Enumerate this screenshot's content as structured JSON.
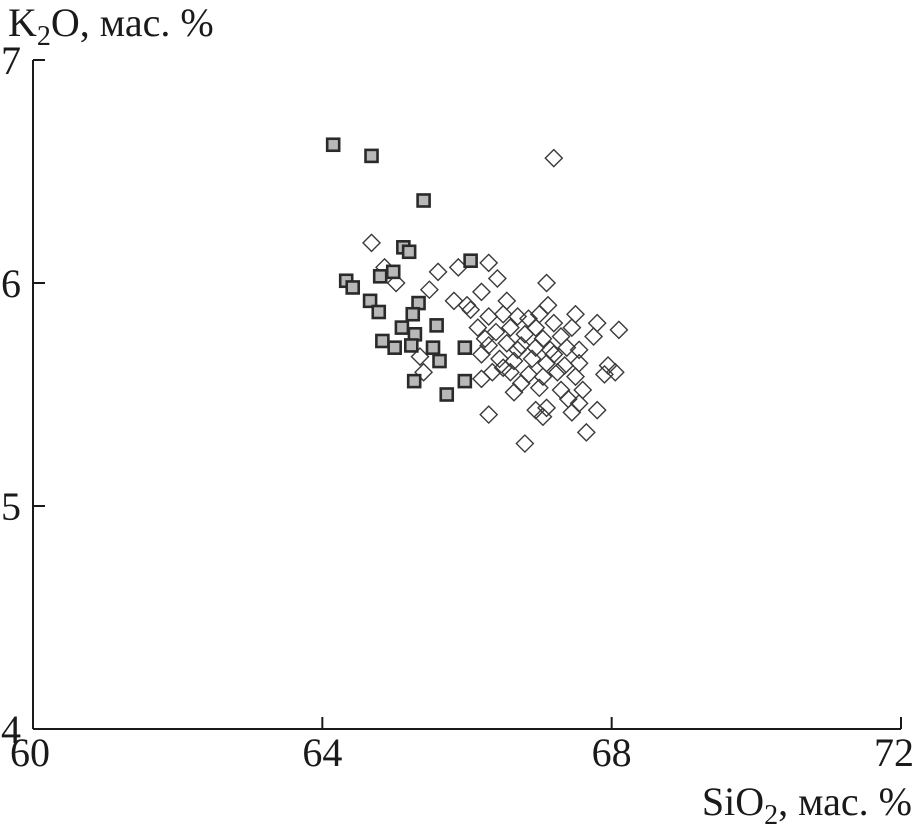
{
  "chart_data": {
    "type": "scatter",
    "title": "",
    "ylabel_parts": [
      "K",
      "2",
      "O, мас. %"
    ],
    "xlabel_parts": [
      "SiO",
      "2",
      ", мас. %"
    ],
    "xlim": [
      60,
      72
    ],
    "ylim": [
      4,
      7
    ],
    "x_ticks": [
      60,
      64,
      68,
      72
    ],
    "y_ticks": [
      4,
      5,
      6,
      7
    ],
    "grid": false,
    "series": [
      {
        "marker": "square",
        "points": [
          [
            64.15,
            6.62
          ],
          [
            64.68,
            6.57
          ],
          [
            65.4,
            6.37
          ],
          [
            65.12,
            6.16
          ],
          [
            65.2,
            6.14
          ],
          [
            66.05,
            6.1
          ],
          [
            64.33,
            6.01
          ],
          [
            64.42,
            5.98
          ],
          [
            64.8,
            6.03
          ],
          [
            64.98,
            6.05
          ],
          [
            64.66,
            5.92
          ],
          [
            65.33,
            5.91
          ],
          [
            64.78,
            5.87
          ],
          [
            65.25,
            5.86
          ],
          [
            65.1,
            5.8
          ],
          [
            65.58,
            5.81
          ],
          [
            65.28,
            5.77
          ],
          [
            64.83,
            5.74
          ],
          [
            65.0,
            5.71
          ],
          [
            65.23,
            5.72
          ],
          [
            65.53,
            5.71
          ],
          [
            65.97,
            5.71
          ],
          [
            65.62,
            5.65
          ],
          [
            65.27,
            5.56
          ],
          [
            65.97,
            5.56
          ],
          [
            65.72,
            5.5
          ]
        ]
      },
      {
        "marker": "diamond",
        "points": [
          [
            67.2,
            6.56
          ],
          [
            64.68,
            6.18
          ],
          [
            64.86,
            6.07
          ],
          [
            65.02,
            6.0
          ],
          [
            65.6,
            6.05
          ],
          [
            65.48,
            5.97
          ],
          [
            65.88,
            6.07
          ],
          [
            66.3,
            6.09
          ],
          [
            66.42,
            6.02
          ],
          [
            67.1,
            6.0
          ],
          [
            66.2,
            5.96
          ],
          [
            66.55,
            5.92
          ],
          [
            67.12,
            5.9
          ],
          [
            65.82,
            5.92
          ],
          [
            66.05,
            5.88
          ],
          [
            66.3,
            5.85
          ],
          [
            66.5,
            5.86
          ],
          [
            66.7,
            5.85
          ],
          [
            66.85,
            5.84
          ],
          [
            67.0,
            5.86
          ],
          [
            67.2,
            5.82
          ],
          [
            67.5,
            5.86
          ],
          [
            67.8,
            5.82
          ],
          [
            68.1,
            5.79
          ],
          [
            67.45,
            5.8
          ],
          [
            66.15,
            5.8
          ],
          [
            66.4,
            5.78
          ],
          [
            66.6,
            5.8
          ],
          [
            66.8,
            5.77
          ],
          [
            67.05,
            5.75
          ],
          [
            67.3,
            5.76
          ],
          [
            67.75,
            5.76
          ],
          [
            66.3,
            5.72
          ],
          [
            66.55,
            5.73
          ],
          [
            66.75,
            5.72
          ],
          [
            66.95,
            5.71
          ],
          [
            67.15,
            5.7
          ],
          [
            67.38,
            5.71
          ],
          [
            67.55,
            5.7
          ],
          [
            65.35,
            5.67
          ],
          [
            66.2,
            5.68
          ],
          [
            66.45,
            5.66
          ],
          [
            66.65,
            5.65
          ],
          [
            66.9,
            5.66
          ],
          [
            67.1,
            5.64
          ],
          [
            67.35,
            5.63
          ],
          [
            67.55,
            5.64
          ],
          [
            67.95,
            5.63
          ],
          [
            66.35,
            5.6
          ],
          [
            66.6,
            5.6
          ],
          [
            66.85,
            5.59
          ],
          [
            67.05,
            5.58
          ],
          [
            67.25,
            5.6
          ],
          [
            67.5,
            5.58
          ],
          [
            67.9,
            5.59
          ],
          [
            68.05,
            5.6
          ],
          [
            65.4,
            5.6
          ],
          [
            66.2,
            5.57
          ],
          [
            66.75,
            5.55
          ],
          [
            67.0,
            5.53
          ],
          [
            67.3,
            5.52
          ],
          [
            67.6,
            5.52
          ],
          [
            66.65,
            5.51
          ],
          [
            67.4,
            5.48
          ],
          [
            67.55,
            5.46
          ],
          [
            67.1,
            5.44
          ],
          [
            67.45,
            5.42
          ],
          [
            67.8,
            5.43
          ],
          [
            66.3,
            5.41
          ],
          [
            66.95,
            5.43
          ],
          [
            67.05,
            5.4
          ],
          [
            67.65,
            5.33
          ],
          [
            66.8,
            5.28
          ],
          [
            66.0,
            5.9
          ],
          [
            66.25,
            5.75
          ],
          [
            66.95,
            5.8
          ],
          [
            67.2,
            5.68
          ],
          [
            66.7,
            5.7
          ],
          [
            66.5,
            5.62
          ]
        ]
      }
    ]
  }
}
